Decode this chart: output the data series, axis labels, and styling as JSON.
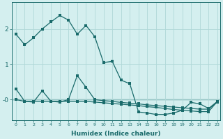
{
  "xlabel": "Humidex (Indice chaleur)",
  "background_color": "#d4efef",
  "grid_color": "#b0d8d8",
  "line_color": "#1a6b6b",
  "xlim": [
    -0.5,
    23.3
  ],
  "ylim": [
    -0.58,
    2.75
  ],
  "xticks": [
    0,
    1,
    2,
    3,
    4,
    5,
    6,
    7,
    8,
    9,
    10,
    11,
    12,
    13,
    14,
    15,
    16,
    17,
    18,
    19,
    20,
    21,
    22,
    23
  ],
  "yticks": [
    0,
    1,
    2
  ],
  "ytick_labels": [
    "-0",
    "1",
    "2"
  ],
  "line1_x": [
    0,
    1,
    2,
    3,
    4,
    5,
    6,
    7,
    8,
    9,
    10,
    11,
    12,
    13,
    14,
    15,
    16,
    17,
    18,
    19,
    20,
    21,
    22,
    23
  ],
  "line1_y": [
    1.85,
    1.55,
    1.75,
    2.0,
    2.2,
    2.38,
    2.25,
    1.85,
    2.1,
    1.78,
    1.05,
    1.08,
    0.55,
    0.45,
    -0.35,
    -0.38,
    -0.42,
    -0.42,
    -0.38,
    -0.3,
    -0.08,
    -0.12,
    -0.25,
    -0.05
  ],
  "line2_x": [
    0,
    1,
    2,
    3,
    4,
    5,
    6,
    7,
    8,
    9,
    10,
    11,
    12,
    13,
    14,
    15,
    16,
    17,
    18,
    19,
    20,
    21,
    22,
    23
  ],
  "line2_y": [
    0.3,
    -0.05,
    -0.07,
    0.25,
    -0.05,
    -0.07,
    0.0,
    0.68,
    0.35,
    0.0,
    -0.03,
    -0.05,
    -0.08,
    -0.1,
    -0.12,
    -0.15,
    -0.17,
    -0.19,
    -0.21,
    -0.23,
    -0.25,
    -0.27,
    -0.27,
    -0.07
  ],
  "line3_x": [
    0,
    1,
    2,
    3,
    4,
    5,
    6,
    7,
    8,
    9,
    10,
    11,
    12,
    13,
    14,
    15,
    16,
    17,
    18,
    19,
    20,
    21,
    22,
    23
  ],
  "line3_y": [
    0.0,
    -0.05,
    -0.05,
    -0.05,
    -0.05,
    -0.05,
    -0.05,
    -0.05,
    -0.05,
    -0.07,
    -0.09,
    -0.11,
    -0.13,
    -0.15,
    -0.17,
    -0.2,
    -0.22,
    -0.25,
    -0.28,
    -0.3,
    -0.32,
    -0.34,
    -0.34,
    -0.05
  ],
  "hline_y": 0.0
}
